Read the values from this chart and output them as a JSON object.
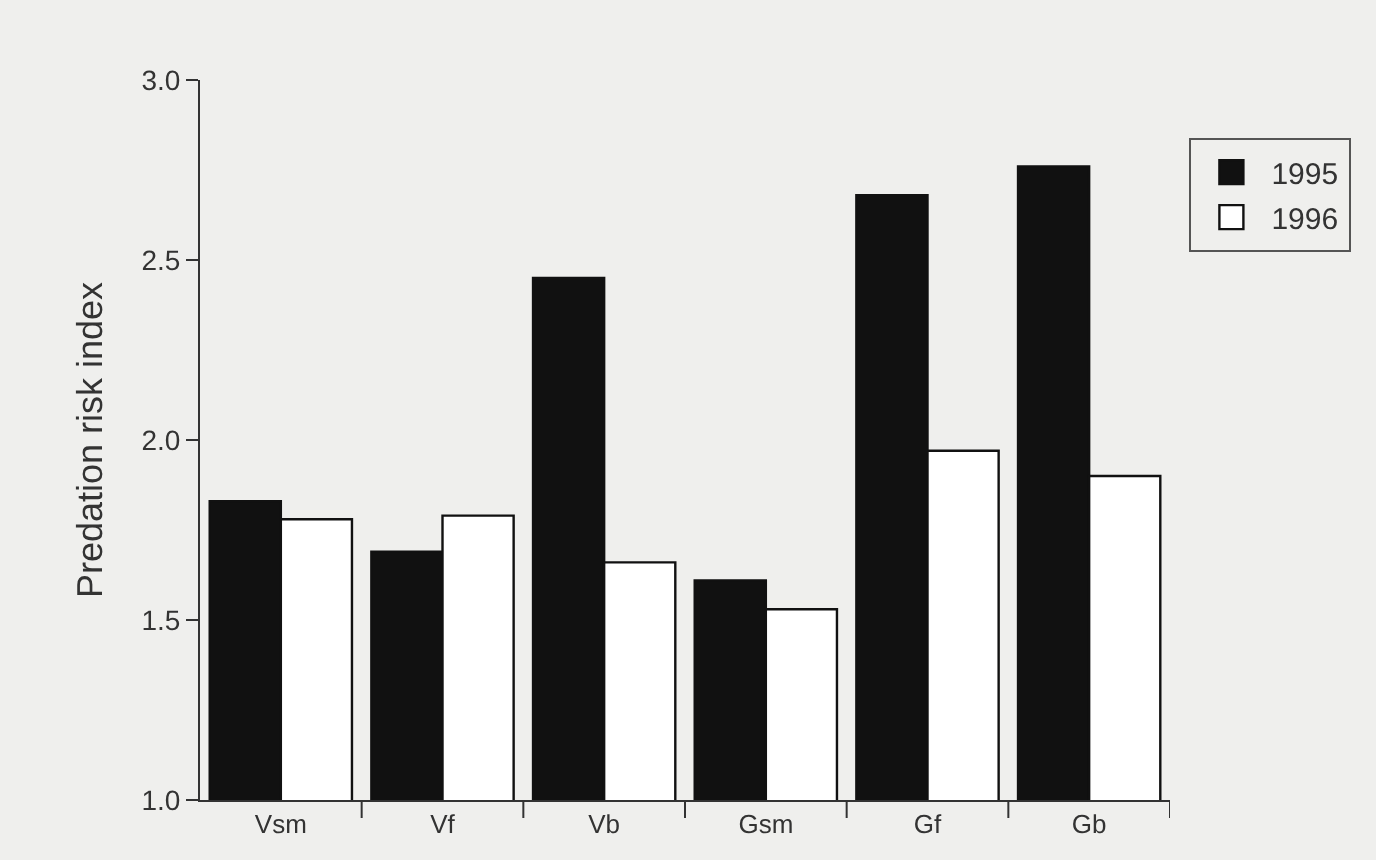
{
  "chart_data": {
    "type": "bar",
    "ylabel": "Predation risk index",
    "categories": [
      "Vsm",
      "Vf",
      "Vb",
      "Gsm",
      "Gf",
      "Gb"
    ],
    "series": [
      {
        "name": "1995",
        "color": "#111111",
        "values": [
          1.83,
          1.69,
          2.45,
          1.61,
          2.68,
          2.76
        ]
      },
      {
        "name": "1996",
        "color": "#ffffff",
        "values": [
          1.78,
          1.79,
          1.66,
          1.53,
          1.97,
          1.9
        ]
      }
    ],
    "ylim": [
      1.0,
      3.0
    ],
    "yticks": [
      {
        "value": 1,
        "label": "1.0"
      },
      {
        "value": 1.5,
        "label": "1.5"
      },
      {
        "value": 2,
        "label": "2.0"
      },
      {
        "value": 2.5,
        "label": "2.5"
      },
      {
        "value": 3,
        "label": "3.0"
      }
    ],
    "grid": false,
    "legend": "top right"
  }
}
